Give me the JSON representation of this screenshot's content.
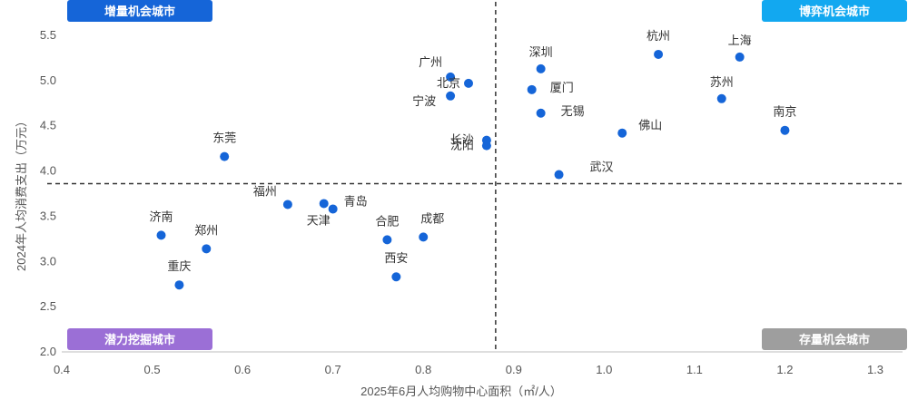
{
  "chart_data": {
    "type": "scatter",
    "xlabel": "2025年6月人均购物中心面积（㎡/人）",
    "ylabel": "2024年人均消费支出（万元）",
    "xlim": [
      0.4,
      1.3
    ],
    "ylim": [
      2.0,
      5.5
    ],
    "x_ticks": [
      "0.4",
      "0.5",
      "0.6",
      "0.7",
      "0.8",
      "0.9",
      "1.0",
      "1.1",
      "1.2",
      "1.3"
    ],
    "y_ticks": [
      "2.0",
      "2.5",
      "3.0",
      "3.5",
      "4.0",
      "4.5",
      "5.0",
      "5.5"
    ],
    "divider_x": 0.88,
    "divider_y": 3.86,
    "grid": false,
    "point_color": "#1565d8",
    "quadrants": [
      {
        "label": "增量机会城市",
        "position": "top-left",
        "color": "#1565d8"
      },
      {
        "label": "博弈机会城市",
        "position": "top-right",
        "color": "#12a8f0"
      },
      {
        "label": "潜力挖掘城市",
        "position": "bottom-left",
        "color": "#9b6fd6"
      },
      {
        "label": "存量机会城市",
        "position": "bottom-right",
        "color": "#9e9e9e"
      }
    ],
    "points": [
      {
        "name": "杭州",
        "x": 1.06,
        "y": 5.29
      },
      {
        "name": "上海",
        "x": 1.15,
        "y": 5.26
      },
      {
        "name": "深圳",
        "x": 0.93,
        "y": 5.13
      },
      {
        "name": "广州",
        "x": 0.83,
        "y": 5.04
      },
      {
        "name": "北京",
        "x": 0.85,
        "y": 4.97
      },
      {
        "name": "厦门",
        "x": 0.92,
        "y": 4.9
      },
      {
        "name": "宁波",
        "x": 0.83,
        "y": 4.83
      },
      {
        "name": "苏州",
        "x": 1.13,
        "y": 4.8
      },
      {
        "name": "无锡",
        "x": 0.93,
        "y": 4.64
      },
      {
        "name": "南京",
        "x": 1.2,
        "y": 4.45
      },
      {
        "name": "佛山",
        "x": 1.02,
        "y": 4.42
      },
      {
        "name": "长沙",
        "x": 0.87,
        "y": 4.34
      },
      {
        "name": "沈阳",
        "x": 0.87,
        "y": 4.28
      },
      {
        "name": "东莞",
        "x": 0.58,
        "y": 4.16
      },
      {
        "name": "武汉",
        "x": 0.95,
        "y": 3.96
      },
      {
        "name": "福州",
        "x": 0.65,
        "y": 3.63
      },
      {
        "name": "天津",
        "x": 0.69,
        "y": 3.64
      },
      {
        "name": "青岛",
        "x": 0.7,
        "y": 3.58
      },
      {
        "name": "济南",
        "x": 0.51,
        "y": 3.29
      },
      {
        "name": "合肥",
        "x": 0.76,
        "y": 3.24
      },
      {
        "name": "成都",
        "x": 0.8,
        "y": 3.27
      },
      {
        "name": "郑州",
        "x": 0.56,
        "y": 3.14
      },
      {
        "name": "西安",
        "x": 0.77,
        "y": 2.83
      },
      {
        "name": "重庆",
        "x": 0.53,
        "y": 2.74
      }
    ]
  }
}
